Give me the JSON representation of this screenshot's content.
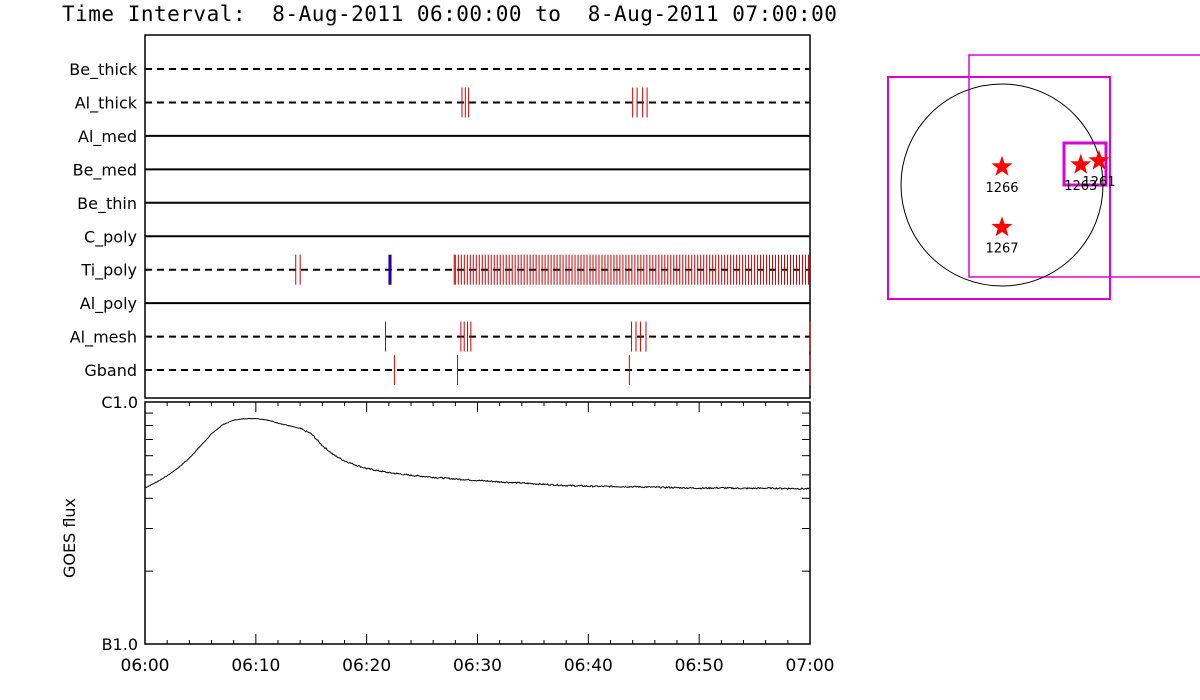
{
  "title": "Time Interval:  8-Aug-2011 06:00:00 to  8-Aug-2011 07:00:00",
  "chart_data": [
    {
      "type": "timeline",
      "x_unit": "minutes after 06:00",
      "xlim": [
        0,
        60
      ],
      "tick_labels": [
        "06:00",
        "06:10",
        "06:20",
        "06:30",
        "06:40",
        "06:50",
        "07:00"
      ],
      "channels": [
        {
          "name": "Be_thick",
          "style": "dashed",
          "events": []
        },
        {
          "name": "Al_thick",
          "style": "dashed",
          "events": [
            28.6,
            28.9,
            29.2,
            44.0,
            44.4,
            44.9,
            45.3
          ]
        },
        {
          "name": "Al_med",
          "style": "solid",
          "events": []
        },
        {
          "name": "Be_med",
          "style": "solid",
          "events": []
        },
        {
          "name": "Be_thin",
          "style": "solid",
          "events": []
        },
        {
          "name": "C_poly",
          "style": "solid",
          "events": []
        },
        {
          "name": "Ti_poly",
          "style": "dashed",
          "events": [
            13.6,
            14.0,
            22.2,
            27.9
          ],
          "dense_start": 28.0,
          "dense_end": 60.0,
          "dense_spacing": 0.27,
          "blue_event": 22.1
        },
        {
          "name": "Al_poly",
          "style": "solid",
          "events": []
        },
        {
          "name": "Al_mesh",
          "style": "dashed",
          "events": [
            21.7,
            28.5,
            28.8,
            29.1,
            29.4,
            43.9,
            44.3,
            44.7,
            45.2,
            60.0
          ]
        },
        {
          "name": "Gband",
          "style": "dashed",
          "events": [
            22.5,
            28.2,
            43.7,
            60.0
          ]
        }
      ],
      "event_color": "#cc0000",
      "blue_color": "#2200aa"
    },
    {
      "type": "line",
      "ylabel": "GOES flux",
      "y_tick_labels": [
        "C1.0",
        "B1.0"
      ],
      "y_scale": "log",
      "ylim": [
        "B1.0",
        "C1.0"
      ],
      "series": [
        {
          "x": [
            0,
            1,
            2,
            3,
            4,
            5,
            6,
            7,
            8,
            9,
            10,
            11,
            12,
            13,
            14,
            15,
            16,
            17,
            18,
            19,
            20,
            22,
            24,
            26,
            28,
            30,
            32,
            34,
            36,
            38,
            40,
            42,
            44,
            46,
            48,
            50,
            52,
            54,
            56,
            58,
            60
          ],
          "y": [
            0.645,
            0.668,
            0.695,
            0.728,
            0.768,
            0.818,
            0.868,
            0.906,
            0.925,
            0.931,
            0.932,
            0.926,
            0.913,
            0.902,
            0.89,
            0.869,
            0.82,
            0.782,
            0.757,
            0.74,
            0.725,
            0.708,
            0.697,
            0.689,
            0.682,
            0.676,
            0.67,
            0.665,
            0.66,
            0.655,
            0.652,
            0.651,
            0.65,
            0.648,
            0.646,
            0.644,
            0.645,
            0.643,
            0.644,
            0.643,
            0.641
          ]
        }
      ]
    },
    {
      "type": "map",
      "regions": [
        {
          "label": "1266",
          "x": -0.0,
          "y": 0.18
        },
        {
          "label": "1267",
          "x": 0.0,
          "y": -0.42
        },
        {
          "label": "1263",
          "x": 0.78,
          "y": 0.2
        },
        {
          "label": "1261",
          "x": 0.96,
          "y": 0.24
        }
      ],
      "star_color": "#ff0000",
      "box_color": "#dd00dd"
    }
  ]
}
